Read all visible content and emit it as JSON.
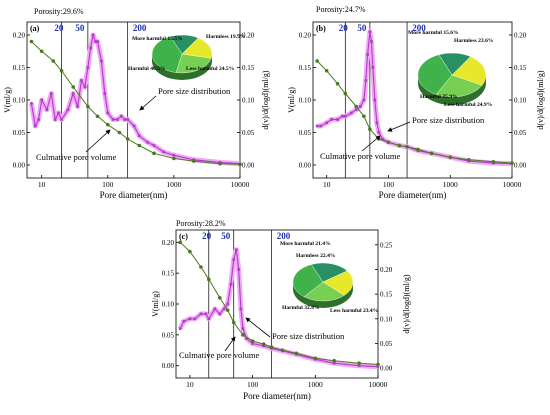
{
  "colors": {
    "cumulative": "#4a7a1e",
    "distribution": "#b03cc8",
    "distribution_glow": "#f2a8f7",
    "boundary_label": "#1f2fb3",
    "pie_harmless": "#e8e82a",
    "pie_less_harmful": "#78d052",
    "pie_harmful": "#3fb34a",
    "pie_more_harmful": "#2a8f62"
  },
  "chart_data": [
    {
      "type": "line",
      "panel_label": "(a)",
      "porosity": "Porosity:29.6%",
      "xlabel": "Pore diameter(nm)",
      "ylabel_left": "V(ml/g)",
      "ylabel_right": "d(v)/d(logd)(ml/g)",
      "xscale": "log",
      "xlim": [
        6,
        10000
      ],
      "ylim_left": [
        -0.02,
        0.22
      ],
      "ylim_right": [
        -0.02,
        0.22
      ],
      "x_ticks": [
        10,
        100,
        1000,
        10000
      ],
      "x_ticklabels": [
        "10",
        "100",
        "1000",
        "10000"
      ],
      "y_ticks_left": [
        0,
        0.05,
        0.1,
        0.15,
        0.2
      ],
      "y_ticklabels_left": [
        "0.00",
        "0.05",
        "0.10",
        "0.15",
        "0.20"
      ],
      "y_ticks_right": [
        0,
        0.05,
        0.1,
        0.15,
        0.2
      ],
      "y_ticklabels_right": [
        "0.00",
        "0.05",
        "0.10",
        "0.15",
        "0.20"
      ],
      "boundaries": [
        20,
        50,
        200
      ],
      "boundary_labels": [
        "20",
        "50",
        "200"
      ],
      "annotations": [
        "Culmative pore volume",
        "Pore size distribution"
      ],
      "pie_labels": [
        "More harmful 15.5%",
        "Harmless 19.5%",
        "Harmful 40.5%",
        "Less harmful 24.5%"
      ],
      "pie_values": [
        15.5,
        19.5,
        40.5,
        24.5
      ],
      "series": [
        {
          "name": "Culmative pore volume",
          "x": [
            7,
            10,
            15,
            20,
            30,
            50,
            70,
            100,
            150,
            200,
            300,
            500,
            1000,
            2000,
            5000,
            10000
          ],
          "values": [
            0.19,
            0.175,
            0.16,
            0.145,
            0.12,
            0.09,
            0.075,
            0.062,
            0.05,
            0.04,
            0.03,
            0.018,
            0.01,
            0.006,
            0.002,
            0.001
          ]
        },
        {
          "name": "Pore size distribution",
          "x": [
            7,
            8,
            9,
            10,
            12,
            14,
            16,
            18,
            20,
            25,
            30,
            35,
            40,
            45,
            50,
            55,
            60,
            65,
            70,
            80,
            90,
            100,
            120,
            140,
            160,
            180,
            200,
            250,
            300,
            400,
            500,
            700,
            1000,
            2000,
            5000,
            10000
          ],
          "values": [
            0.095,
            0.06,
            0.07,
            0.1,
            0.085,
            0.11,
            0.07,
            0.08,
            0.07,
            0.085,
            0.11,
            0.09,
            0.13,
            0.12,
            0.15,
            0.18,
            0.2,
            0.19,
            0.19,
            0.16,
            0.11,
            0.08,
            0.07,
            0.07,
            0.075,
            0.07,
            0.07,
            0.06,
            0.045,
            0.035,
            0.03,
            0.02,
            0.015,
            0.008,
            0.004,
            0.002
          ]
        }
      ]
    },
    {
      "type": "line",
      "panel_label": "(b)",
      "porosity": "Porosity:24.7%",
      "xlabel": "Pore diameter(nm)",
      "ylabel_left": "V(ml/g)",
      "ylabel_right": "d(v)/d(logd)(ml/g)",
      "xscale": "log",
      "xlim": [
        6,
        10000
      ],
      "ylim_left": [
        -0.02,
        0.22
      ],
      "ylim_right": [
        -0.02,
        0.22
      ],
      "x_ticks": [
        10,
        100,
        1000,
        10000
      ],
      "x_ticklabels": [
        "10",
        "100",
        "1000",
        "10000"
      ],
      "y_ticks_left": [
        0,
        0.05,
        0.1,
        0.15,
        0.2
      ],
      "y_ticklabels_left": [
        "0.00",
        "0.05",
        "0.10",
        "0.15",
        "0.20"
      ],
      "y_ticks_right": [
        0,
        0.05,
        0.1,
        0.15,
        0.2
      ],
      "y_ticklabels_right": [
        "0.00",
        "0.05",
        "0.10",
        "0.15",
        "0.20"
      ],
      "boundaries": [
        20,
        50,
        200
      ],
      "boundary_labels": [
        "20",
        "50",
        "200"
      ],
      "annotations": [
        "Culmative pore volume",
        "Pore size distribution"
      ],
      "pie_labels": [
        "More harmful 15.6%",
        "Harmless 23.6%",
        "Harmful 35.9%",
        "Less harmful 24.9%"
      ],
      "pie_values": [
        15.6,
        23.6,
        35.9,
        24.9
      ],
      "series": [
        {
          "name": "Culmative pore volume",
          "x": [
            7,
            10,
            15,
            20,
            30,
            40,
            50,
            70,
            100,
            150,
            200,
            300,
            500,
            1000,
            2000,
            5000,
            10000
          ],
          "values": [
            0.16,
            0.145,
            0.125,
            0.11,
            0.09,
            0.075,
            0.055,
            0.04,
            0.035,
            0.03,
            0.028,
            0.024,
            0.018,
            0.012,
            0.008,
            0.005,
            0.003
          ]
        },
        {
          "name": "Pore size distribution",
          "x": [
            7,
            8,
            10,
            12,
            15,
            18,
            20,
            25,
            30,
            35,
            40,
            43,
            46,
            50,
            53,
            56,
            60,
            65,
            70,
            80,
            100,
            150,
            200,
            300,
            500,
            1000,
            2000,
            5000,
            10000
          ],
          "values": [
            0.06,
            0.06,
            0.065,
            0.07,
            0.07,
            0.075,
            0.075,
            0.08,
            0.085,
            0.09,
            0.1,
            0.13,
            0.17,
            0.205,
            0.19,
            0.15,
            0.1,
            0.065,
            0.05,
            0.04,
            0.035,
            0.03,
            0.028,
            0.022,
            0.018,
            0.012,
            0.006,
            0.003,
            0.002
          ]
        }
      ]
    },
    {
      "type": "line",
      "panel_label": "(c)",
      "porosity": "Porosity:28.2%",
      "xlabel": "Pore diameter(nm)",
      "ylabel_left": "V(ml/g)",
      "ylabel_right": "d(v)/d(logd)(ml/g)",
      "xscale": "log",
      "xlim": [
        6,
        10000
      ],
      "ylim_left": [
        -0.02,
        0.22
      ],
      "ylim_right": [
        -0.02,
        0.28
      ],
      "x_ticks": [
        10,
        100,
        1000,
        10000
      ],
      "x_ticklabels": [
        "10",
        "100",
        "1000",
        "10000"
      ],
      "y_ticks_left": [
        0,
        0.05,
        0.1,
        0.15,
        0.2
      ],
      "y_ticklabels_left": [
        "0.00",
        "0.05",
        "0.10",
        "0.15",
        "0.20"
      ],
      "y_ticks_right": [
        0,
        0.05,
        0.1,
        0.15,
        0.2,
        0.25
      ],
      "y_ticklabels_right": [
        "0.00",
        "0.05",
        "0.10",
        "0.15",
        "0.20",
        "0.25"
      ],
      "boundaries": [
        20,
        50,
        200
      ],
      "boundary_labels": [
        "20",
        "50",
        "200"
      ],
      "annotations": [
        "Culmative pore volume",
        "Pore size distribution"
      ],
      "pie_labels": [
        "More harmful 21.4%",
        "Harmless 22.4%",
        "Harmful 32.8%",
        "Less harmful 23.4%"
      ],
      "pie_values": [
        21.4,
        22.4,
        32.8,
        23.4
      ],
      "series": [
        {
          "name": "Culmative pore volume",
          "x": [
            7,
            10,
            15,
            20,
            30,
            40,
            50,
            70,
            100,
            150,
            200,
            300,
            500,
            1000,
            2000,
            5000,
            10000
          ],
          "values": [
            0.2,
            0.185,
            0.16,
            0.14,
            0.11,
            0.09,
            0.07,
            0.05,
            0.04,
            0.035,
            0.03,
            0.025,
            0.02,
            0.012,
            0.008,
            0.004,
            0.002
          ]
        },
        {
          "name": "Pore size distribution",
          "x": [
            7,
            8,
            10,
            12,
            15,
            18,
            20,
            25,
            30,
            35,
            40,
            45,
            50,
            55,
            60,
            65,
            70,
            80,
            100,
            150,
            200,
            300,
            500,
            1000,
            2000,
            5000,
            10000
          ],
          "values": [
            0.08,
            0.095,
            0.1,
            0.1,
            0.11,
            0.11,
            0.1,
            0.12,
            0.11,
            0.12,
            0.13,
            0.17,
            0.22,
            0.24,
            0.2,
            0.12,
            0.08,
            0.06,
            0.05,
            0.045,
            0.04,
            0.035,
            0.028,
            0.018,
            0.01,
            0.005,
            0.003
          ]
        }
      ]
    }
  ]
}
